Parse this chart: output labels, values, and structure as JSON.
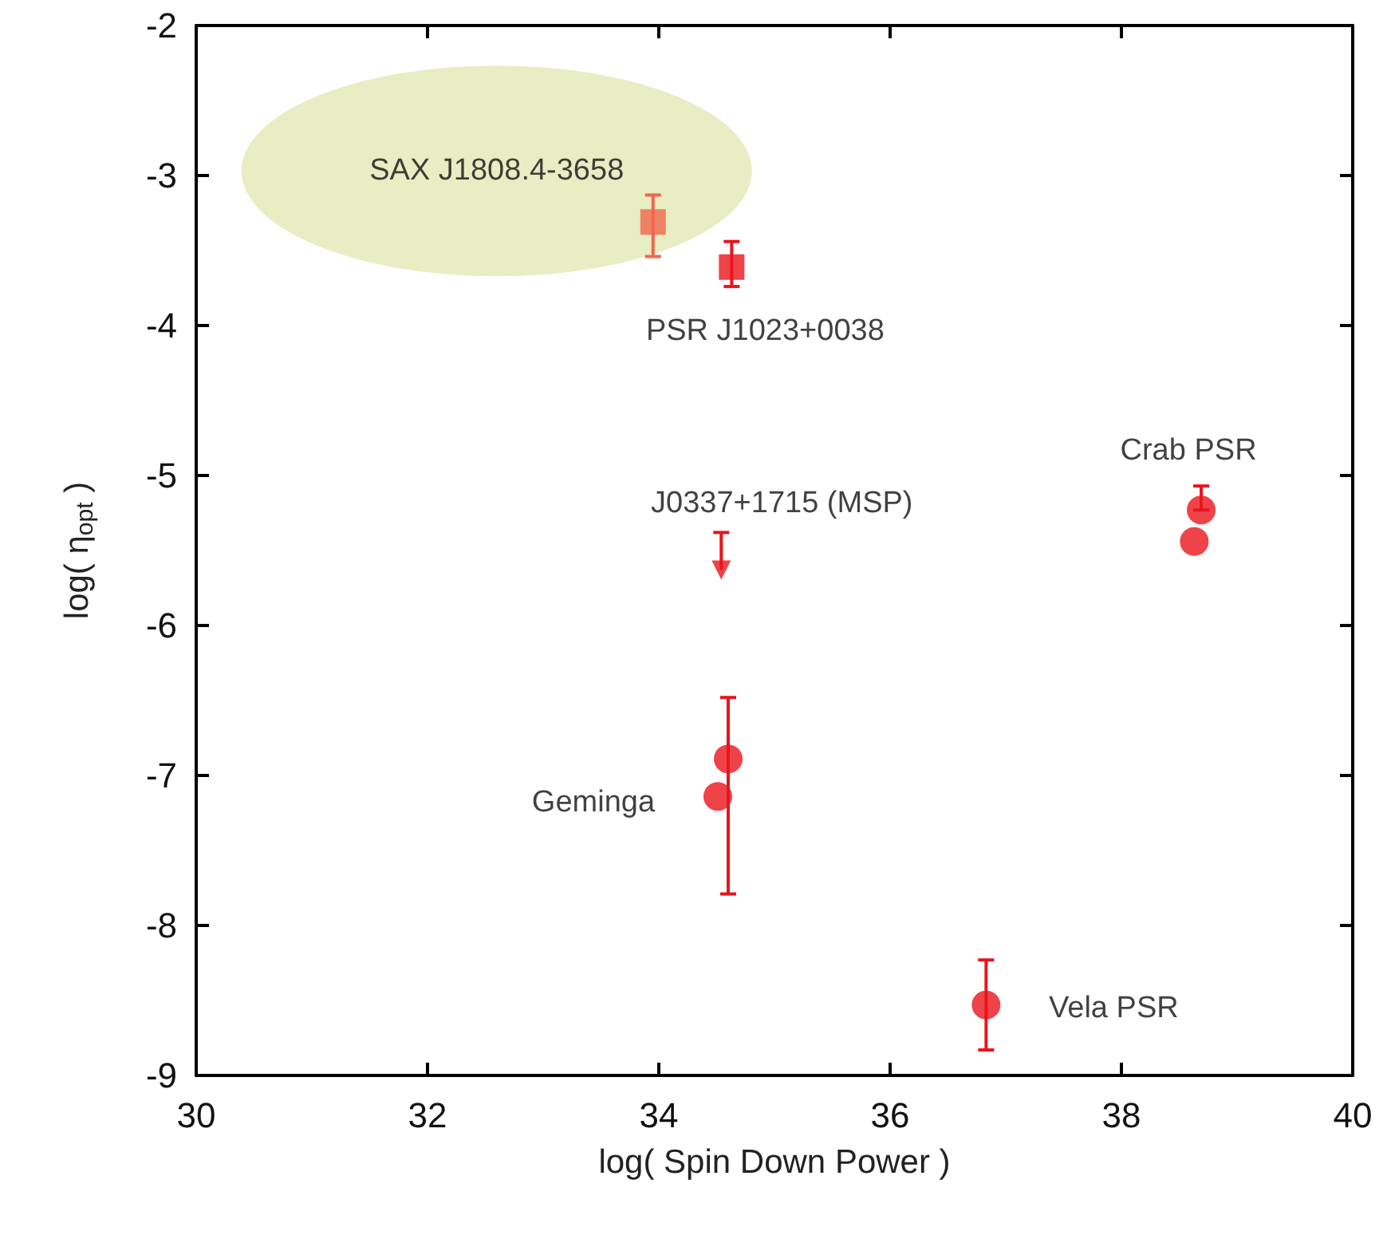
{
  "chart_data": {
    "type": "scatter",
    "xlabel": "log( Spin Down Power )",
    "ylabel": "log( η$_{opt}$ )",
    "xlim": [
      30,
      40
    ],
    "xticks": [
      30,
      32,
      34,
      36,
      38,
      40
    ],
    "ylim": [
      -9,
      -2
    ],
    "yticks": [
      -9,
      -8,
      -7,
      -6,
      -5,
      -4,
      -3,
      -2
    ],
    "grid": false,
    "series": [
      {
        "color": "#f0674c",
        "marker": "square",
        "x": [
          33.95
        ],
        "values": [
          -3.31
        ],
        "errors": [
          [
            -3.54,
            -3.13
          ]
        ]
      },
      {
        "color": "#e8141c",
        "marker": "square",
        "x": [
          34.63
        ],
        "values": [
          -3.61
        ],
        "errors": [
          [
            -3.74,
            -3.44
          ]
        ]
      },
      {
        "color": "#e8141c",
        "marker": "triangle",
        "x": [
          34.54
        ],
        "values": [
          -5.63
        ],
        "errors": [
          [
            -5.63,
            -5.38
          ]
        ]
      },
      {
        "color": "#e8141c",
        "marker": "circle",
        "x": [
          34.6,
          34.51,
          38.69,
          38.63,
          36.83
        ],
        "values": [
          -6.89,
          -7.14,
          -5.23,
          -5.44,
          -8.53
        ],
        "errors": [
          [
            -7.79,
            -6.48
          ],
          null,
          [
            -5.23,
            -5.07
          ],
          null,
          [
            -8.83,
            -8.23
          ]
        ]
      }
    ],
    "annotations": [
      {
        "text": "SAX J1808.4-3658",
        "x": 33.95,
        "y": -3.31
      },
      {
        "text": "PSR J1023+0038",
        "x": 34.63,
        "y": -3.61
      },
      {
        "text": "J0337+1715 (MSP)",
        "x": 34.54,
        "y": -5.38
      },
      {
        "text": "Crab PSR",
        "x": 38.69,
        "y": -5.23
      },
      {
        "text": "Geminga",
        "x": 34.51,
        "y": -7.14
      },
      {
        "text": "Vela PSR",
        "x": 36.83,
        "y": -8.53
      }
    ]
  }
}
